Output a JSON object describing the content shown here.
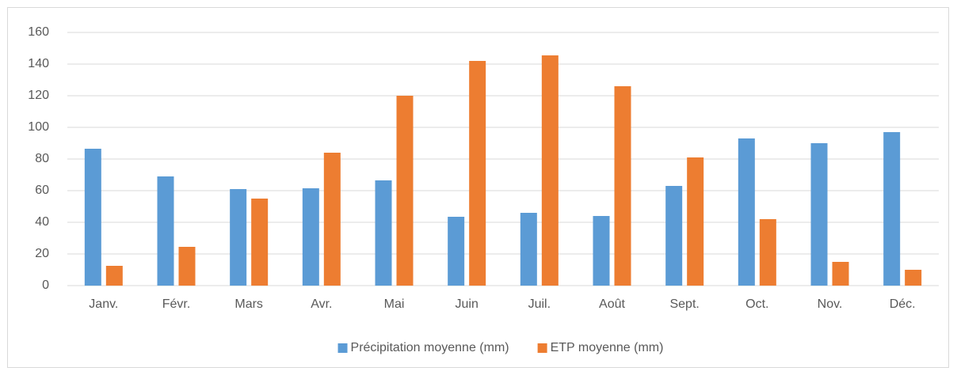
{
  "chart_data": {
    "type": "bar",
    "categories": [
      "Janv.",
      "Févr.",
      "Mars",
      "Avr.",
      "Mai",
      "Juin",
      "Juil.",
      "Août",
      "Sept.",
      "Oct.",
      "Nov.",
      "Déc."
    ],
    "series": [
      {
        "name": "Précipitation moyenne (mm)",
        "color": "#5b9bd5",
        "values": [
          86.5,
          69,
          61,
          61.5,
          66.5,
          43.5,
          46,
          44,
          63,
          93,
          90,
          97
        ]
      },
      {
        "name": "ETP moyenne (mm)",
        "color": "#ed7d31",
        "values": [
          12.5,
          24.5,
          55,
          84,
          120,
          142,
          145.5,
          126,
          81,
          42,
          15,
          10
        ]
      }
    ],
    "ylim": [
      0,
      160
    ],
    "yticks": [
      0,
      20,
      40,
      60,
      80,
      100,
      120,
      140,
      160
    ],
    "grid": true,
    "legend": "bottom"
  }
}
